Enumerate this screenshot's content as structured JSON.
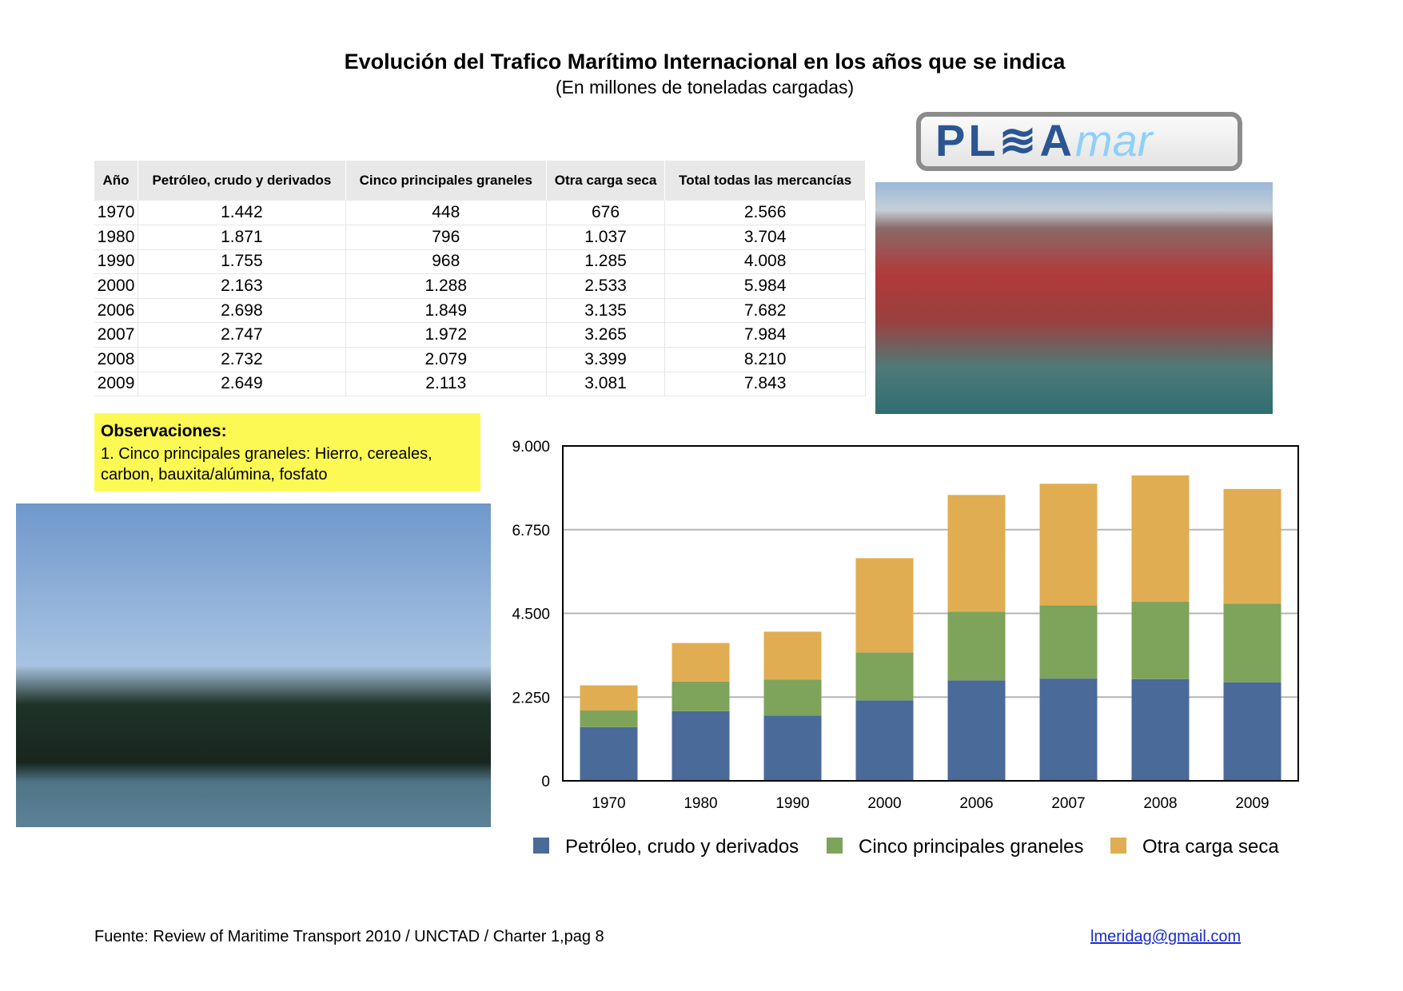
{
  "title": "Evolución del Trafico Marítimo Internacional en los años que se indica",
  "subtitle": "(En millones de toneladas cargadas)",
  "logo": {
    "text": "PL≋A",
    "text2": "mar"
  },
  "table": {
    "headers": [
      "Año",
      "Petróleo, crudo y derivados",
      "Cinco principales graneles",
      "Otra carga seca",
      "Total todas las mercancías"
    ],
    "rows": [
      [
        "1970",
        "1.442",
        "448",
        "676",
        "2.566"
      ],
      [
        "1980",
        "1.871",
        "796",
        "1.037",
        "3.704"
      ],
      [
        "1990",
        "1.755",
        "968",
        "1.285",
        "4.008"
      ],
      [
        "2000",
        "2.163",
        "1.288",
        "2.533",
        "5.984"
      ],
      [
        "2006",
        "2.698",
        "1.849",
        "3.135",
        "7.682"
      ],
      [
        "2007",
        "2.747",
        "1.972",
        "3.265",
        "7.984"
      ],
      [
        "2008",
        "2.732",
        "2.079",
        "3.399",
        "8.210"
      ],
      [
        "2009",
        "2.649",
        "2.113",
        "3.081",
        "7.843"
      ]
    ]
  },
  "observations": {
    "heading": "Observaciones:",
    "text": "1. Cinco principales graneles: Hierro, cereales, carbon, bauxita/alúmina, fosfato"
  },
  "chart_data": {
    "type": "bar",
    "stacked": true,
    "categories": [
      "1970",
      "1980",
      "1990",
      "2000",
      "2006",
      "2007",
      "2008",
      "2009"
    ],
    "series": [
      {
        "name": "Petróleo, crudo y derivados",
        "color": "#4a6a9a",
        "values": [
          1442,
          1871,
          1755,
          2163,
          2698,
          2747,
          2732,
          2649
        ]
      },
      {
        "name": "Cinco principales graneles",
        "color": "#7ea35b",
        "values": [
          448,
          796,
          968,
          1288,
          1849,
          1972,
          2079,
          2113
        ]
      },
      {
        "name": "Otra carga seca",
        "color": "#e0ad52",
        "values": [
          676,
          1037,
          1285,
          2533,
          3135,
          3265,
          3399,
          3081
        ]
      }
    ],
    "ylim": [
      0,
      9000
    ],
    "yticks": [
      "0",
      "2.250",
      "4.500",
      "6.750",
      "9.000"
    ],
    "grid": true,
    "legend": "bottom"
  },
  "footer": {
    "source": "Fuente: Review of Maritime Transport 2010 / UNCTAD / Charter 1,pag 8",
    "email": "lmeridag@gmail.com"
  }
}
